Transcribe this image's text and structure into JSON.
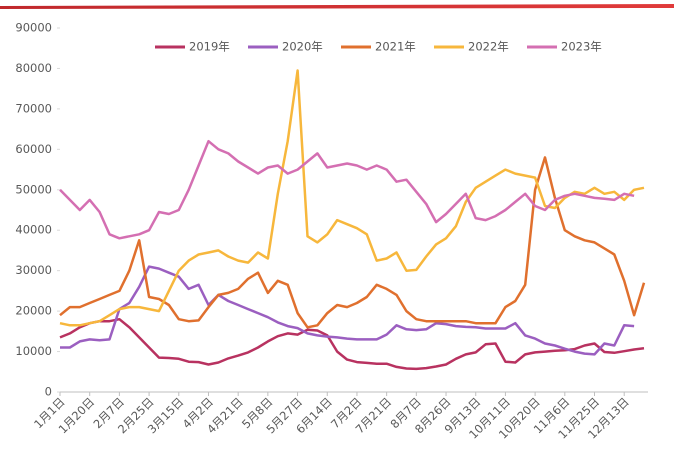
{
  "chart_data": {
    "type": "line",
    "categories": [
      "1月1日",
      null,
      null,
      "1月20日",
      null,
      null,
      "2月7日",
      null,
      null,
      "2月25日",
      null,
      null,
      "3月15日",
      null,
      null,
      "4月2日",
      null,
      null,
      "4月21日",
      null,
      null,
      "5月8日",
      null,
      null,
      "5月27日",
      null,
      null,
      "6月14日",
      null,
      null,
      "7月2日",
      null,
      null,
      "7月21日",
      null,
      null,
      "8月7日",
      null,
      null,
      "8月26日",
      null,
      null,
      "9月13日",
      null,
      null,
      "10月11日",
      null,
      null,
      "10月20日",
      null,
      null,
      "11月6日",
      null,
      null,
      "11月25日",
      null,
      null,
      "12月13日",
      null,
      null
    ],
    "series": [
      {
        "name": "2019年",
        "color": "#b83260",
        "values": [
          13500,
          14500,
          16000,
          17000,
          17500,
          17500,
          18000,
          16000,
          13500,
          11000,
          8500,
          8400,
          8200,
          7500,
          7400,
          6800,
          7300,
          8300,
          9000,
          9800,
          11000,
          12500,
          13800,
          14500,
          14200,
          15400,
          15200,
          14000,
          10000,
          8000,
          7400,
          7200,
          7000,
          7000,
          6200,
          5800,
          5700,
          5900,
          6300,
          6800,
          8200,
          9300,
          9800,
          11800,
          12000,
          7500,
          7300,
          9300,
          9800,
          10000,
          10200,
          10300,
          10600,
          11500,
          12000,
          9900,
          9700,
          10100,
          10500,
          10800
        ]
      },
      {
        "name": "2020年",
        "color": "#9b5fc0",
        "values": [
          11000,
          11000,
          12500,
          13000,
          12800,
          13000,
          20500,
          22000,
          26000,
          31000,
          30500,
          29500,
          28500,
          25500,
          26500,
          21500,
          24000,
          22500,
          21500,
          20500,
          19500,
          18500,
          17200,
          16300,
          15800,
          14500,
          14000,
          13700,
          13500,
          13200,
          13000,
          13000,
          13000,
          14200,
          16500,
          15500,
          15300,
          15500,
          17000,
          16800,
          16300,
          16100,
          16000,
          15700,
          15700,
          15700,
          17000,
          14000,
          13200,
          12000,
          11500,
          10700,
          10000,
          9500,
          9300,
          12000,
          11500,
          16500,
          16300,
          null
        ]
      },
      {
        "name": "2021年",
        "color": "#e0702e",
        "values": [
          19000,
          21000,
          21000,
          22000,
          23000,
          24000,
          25000,
          30000,
          37500,
          23500,
          23000,
          21500,
          18000,
          17500,
          17700,
          21000,
          24000,
          24500,
          25500,
          28000,
          29500,
          24500,
          27500,
          26500,
          19500,
          16000,
          16500,
          19500,
          21500,
          21000,
          22000,
          23500,
          26500,
          25500,
          24000,
          20000,
          18000,
          17500,
          17500,
          17500,
          17500,
          17500,
          17000,
          17000,
          17000,
          21000,
          22500,
          26500,
          50000,
          58000,
          48000,
          40000,
          38500,
          37500,
          37000,
          35500,
          34000,
          27500,
          19000,
          27000
        ]
      },
      {
        "name": "2022年",
        "color": "#f7b73c",
        "values": [
          17000,
          16500,
          16500,
          17000,
          17500,
          19000,
          20500,
          21000,
          21000,
          20500,
          20000,
          25000,
          30000,
          32500,
          34000,
          34500,
          35000,
          33500,
          32500,
          32000,
          34500,
          33000,
          49000,
          62000,
          79500,
          38500,
          37000,
          39000,
          42500,
          41500,
          40500,
          39000,
          32500,
          33000,
          34500,
          30000,
          30200,
          33500,
          36500,
          38000,
          41000,
          47000,
          50500,
          52000,
          53500,
          55000,
          54000,
          53500,
          53000,
          46000,
          45500,
          48000,
          49500,
          49000,
          50500,
          49000,
          49500,
          47500,
          50000,
          50500
        ]
      },
      {
        "name": "2023年",
        "color": "#d46fb2",
        "values": [
          50000,
          47500,
          45000,
          47500,
          44500,
          39000,
          38000,
          38500,
          39000,
          40000,
          44500,
          44000,
          45000,
          50000,
          56000,
          62000,
          60000,
          59000,
          57000,
          55500,
          54000,
          55500,
          56000,
          54000,
          55000,
          57000,
          59000,
          55500,
          56000,
          56500,
          56000,
          55000,
          56000,
          55000,
          52000,
          52500,
          49500,
          46500,
          42000,
          44000,
          46500,
          49000,
          43000,
          42500,
          43500,
          45000,
          47000,
          49000,
          46000,
          45000,
          47500,
          48500,
          49000,
          48500,
          48000,
          47800,
          47500,
          49000,
          48500,
          null
        ]
      }
    ],
    "ylim": [
      0,
      90000
    ],
    "yticks": [
      0,
      10000,
      20000,
      30000,
      40000,
      50000,
      60000,
      70000,
      80000,
      90000
    ],
    "grid": false,
    "legend": "top"
  }
}
